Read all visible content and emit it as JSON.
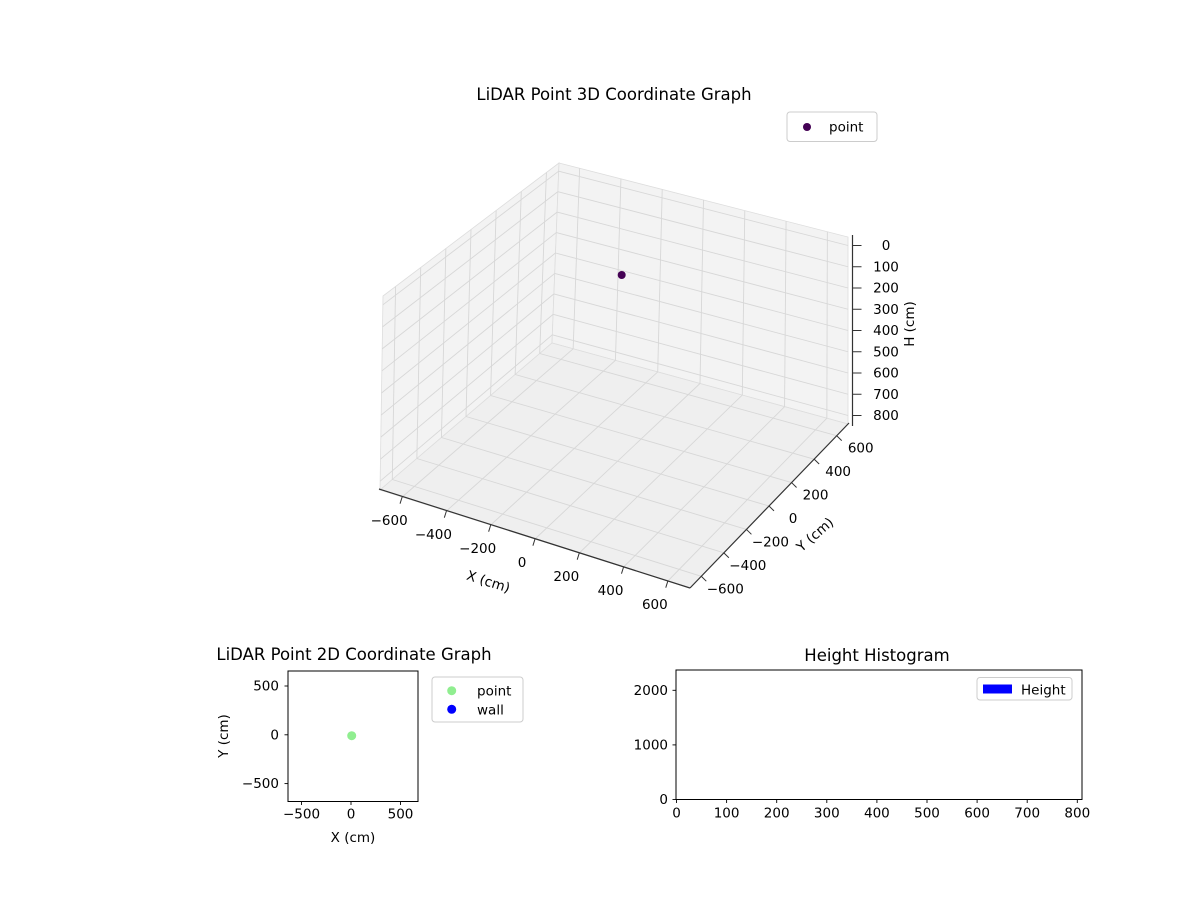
{
  "figure": {
    "background": "#ffffff",
    "layout": "one 3D scatter plot on top, 2D scatter bottom-left, histogram bottom-right"
  },
  "chart_data": [
    {
      "id": "plot3d",
      "type": "scatter",
      "projection": "3d",
      "title": "LiDAR Point 3D Coordinate Graph",
      "xlabel": "X (cm)",
      "ylabel": "Y (cm)",
      "zlabel": "H (cm)",
      "xlim": [
        -700,
        700
      ],
      "ylim": [
        -700,
        700
      ],
      "zlim": [
        0,
        800
      ],
      "z_axis_inverted": true,
      "grid": true,
      "x_ticks": [
        "−600",
        "−400",
        "−200",
        "0",
        "200",
        "400",
        "600"
      ],
      "y_ticks": [
        "600",
        "400",
        "200",
        "0",
        "−200",
        "−400",
        "−600"
      ],
      "z_ticks": [
        "0",
        "100",
        "200",
        "300",
        "400",
        "500",
        "600",
        "700",
        "800"
      ],
      "legend": [
        {
          "label": "point",
          "color": "#440154",
          "marker": "dot"
        }
      ],
      "legend_position": "upper right, outside axes",
      "points": [
        {
          "x": 0,
          "y": 0,
          "h": 100,
          "color": "#440154"
        }
      ]
    },
    {
      "id": "plot2d",
      "type": "scatter",
      "title": "LiDAR Point 2D Coordinate Graph",
      "xlabel": "X (cm)",
      "ylabel": "Y (cm)",
      "xlim": [
        -640,
        680
      ],
      "ylim": [
        -650,
        650
      ],
      "grid": false,
      "x_ticks": [
        "−500",
        "0",
        "500"
      ],
      "y_ticks": [
        "500",
        "0",
        "−500"
      ],
      "legend": [
        {
          "label": "point",
          "color": "#90ee90",
          "marker": "dot"
        },
        {
          "label": "wall",
          "color": "#0000ff",
          "marker": "dot"
        }
      ],
      "legend_position": "outside right of axes",
      "points": [
        {
          "x": 0,
          "y": 0,
          "series": "point",
          "color": "#90ee90"
        }
      ]
    },
    {
      "id": "histogram",
      "type": "bar",
      "title": "Height Histogram",
      "xlabel": "",
      "ylabel": "",
      "xlim": [
        0,
        810
      ],
      "ylim": [
        0,
        2350
      ],
      "grid": false,
      "x_ticks": [
        "0",
        "100",
        "200",
        "300",
        "400",
        "500",
        "600",
        "700",
        "800"
      ],
      "y_ticks": [
        "0",
        "1000",
        "2000"
      ],
      "legend": [
        {
          "label": "Height",
          "color": "#0000ff",
          "marker": "patch"
        }
      ],
      "legend_position": "upper right, inside axes",
      "categories": [],
      "values": []
    }
  ]
}
